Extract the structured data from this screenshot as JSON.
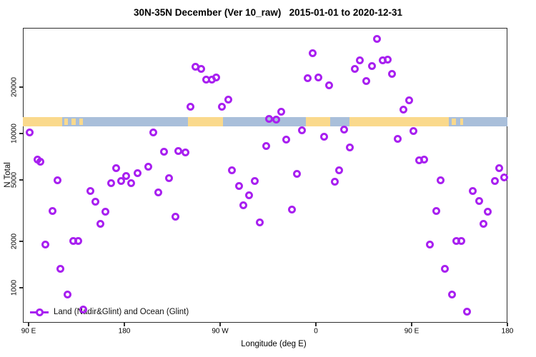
{
  "title": "30N-35N December (Ver 10_raw)   2015-01-01 to 2020-12-31",
  "axes": {
    "ylabel": "N Total",
    "xlabel": "Longitude (deg E)",
    "x_tick_labels": [
      "90 E",
      "180",
      "90 W",
      "0",
      "90 E",
      "180"
    ],
    "y_tick_labels": [
      "1000",
      "2000",
      "5000",
      "10000",
      "20000"
    ]
  },
  "legend": {
    "label": "Land (Nadir&Glint) and Ocean (Glint)"
  },
  "colors": {
    "marker": "#A820F0",
    "land": "#FAD98C",
    "ocean": "#A9BFDA",
    "axis": "#2e2e2e"
  },
  "chart_data": {
    "type": "scatter",
    "title": "30N-35N December (Ver 10_raw)   2015-01-01 to 2020-12-31",
    "xlabel": "Longitude (deg E)",
    "ylabel": "N Total",
    "y_scale": "log",
    "x_axis_wrap_note": "longitude axis runs 90E eastward around the globe to 180 (90 to 540 deg E)",
    "x_ticks_deg": [
      90,
      180,
      270,
      360,
      450,
      540
    ],
    "x_tick_labels": [
      "90 E",
      "180",
      "90 W",
      "0",
      "90 E",
      "180"
    ],
    "y_ticks": [
      1000,
      2000,
      5000,
      10000,
      20000
    ],
    "xlim_deg": [
      84.6,
      540
    ],
    "ylim": [
      600,
      48000
    ],
    "grid": false,
    "legend_position": "bottom-left",
    "legend_entries": [
      "Land (Nadir&Glint) and Ocean (Glint)"
    ],
    "map_band": {
      "n_range": [
        11100,
        12800
      ],
      "ocean_deg": [
        84.6,
        540
      ],
      "land_deg": [
        [
          84.6,
          121.6
        ],
        [
          239.7,
          272.7
        ],
        [
          350.5,
          373.7
        ],
        [
          391.5,
          485.0
        ]
      ],
      "island_deg": [
        [
          123.5,
          127.0
        ],
        [
          130.0,
          134.5
        ],
        [
          137.5,
          141.0
        ],
        [
          487.5,
          491.5
        ],
        [
          495.5,
          498.5
        ]
      ]
    },
    "points": [
      [
        90.7,
        10200
      ],
      [
        98.1,
        6810
      ],
      [
        101.4,
        6530
      ],
      [
        106.1,
        1900
      ],
      [
        112.8,
        3160
      ],
      [
        117.5,
        5000
      ],
      [
        120.2,
        1320
      ],
      [
        126.9,
        899
      ],
      [
        132.3,
        2000
      ],
      [
        137.0,
        2000
      ],
      [
        141.7,
        726
      ],
      [
        147.8,
        4260
      ],
      [
        153.1,
        3630
      ],
      [
        157.2,
        2610
      ],
      [
        162.5,
        3100
      ],
      [
        167.9,
        4790
      ],
      [
        172.6,
        5990
      ],
      [
        177.3,
        4900
      ],
      [
        182.0,
        5330
      ],
      [
        186.7,
        4790
      ],
      [
        192.1,
        5510
      ],
      [
        202.2,
        6120
      ],
      [
        206.9,
        10200
      ],
      [
        212.2,
        4130
      ],
      [
        217.6,
        7580
      ],
      [
        222.3,
        5110
      ],
      [
        227.7,
        2900
      ],
      [
        231.0,
        7740
      ],
      [
        237.1,
        7500
      ],
      [
        242.4,
        14840
      ],
      [
        246.5,
        26950
      ],
      [
        252.5,
        26380
      ],
      [
        257.2,
        22480
      ],
      [
        262.6,
        22480
      ],
      [
        266.6,
        22970
      ],
      [
        272.0,
        14840
      ],
      [
        277.4,
        16680
      ],
      [
        281.4,
        5750
      ],
      [
        288.1,
        4590
      ],
      [
        291.5,
        3440
      ],
      [
        296.9,
        3960
      ],
      [
        302.9,
        4900
      ],
      [
        307.6,
        2640
      ],
      [
        313.0,
        8340
      ],
      [
        316.3,
        12380
      ],
      [
        322.4,
        12250
      ],
      [
        327.1,
        13770
      ],
      [
        331.8,
        9180
      ],
      [
        337.8,
        3200
      ],
      [
        342.5,
        5450
      ],
      [
        347.2,
        10440
      ],
      [
        352.6,
        22730
      ],
      [
        357.3,
        33340
      ],
      [
        362.6,
        22970
      ],
      [
        367.4,
        9580
      ],
      [
        372.1,
        20430
      ],
      [
        378.1,
        4850
      ],
      [
        382.1,
        5750
      ],
      [
        386.8,
        10660
      ],
      [
        392.2,
        8080
      ],
      [
        396.9,
        26380
      ],
      [
        401.6,
        29980
      ],
      [
        407.6,
        21780
      ],
      [
        413.0,
        27240
      ],
      [
        417.7,
        41280
      ],
      [
        423.1,
        29980
      ],
      [
        427.8,
        30300
      ],
      [
        431.8,
        24230
      ],
      [
        437.2,
        9280
      ],
      [
        442.5,
        14220
      ],
      [
        447.9,
        16330
      ],
      [
        451.9,
        10330
      ],
      [
        457.3,
        6670
      ],
      [
        462.0,
        6810
      ],
      [
        467.4,
        1900
      ],
      [
        473.4,
        3130
      ],
      [
        477.4,
        4950
      ],
      [
        481.5,
        1320
      ],
      [
        488.2,
        899
      ],
      [
        492.2,
        2000
      ],
      [
        496.9,
        2000
      ],
      [
        502.3,
        703
      ],
      [
        507.6,
        4260
      ],
      [
        513.7,
        3670
      ],
      [
        517.7,
        2610
      ],
      [
        521.7,
        3100
      ],
      [
        528.4,
        4900
      ],
      [
        532.4,
        5990
      ],
      [
        537.1,
        5170
      ]
    ]
  }
}
